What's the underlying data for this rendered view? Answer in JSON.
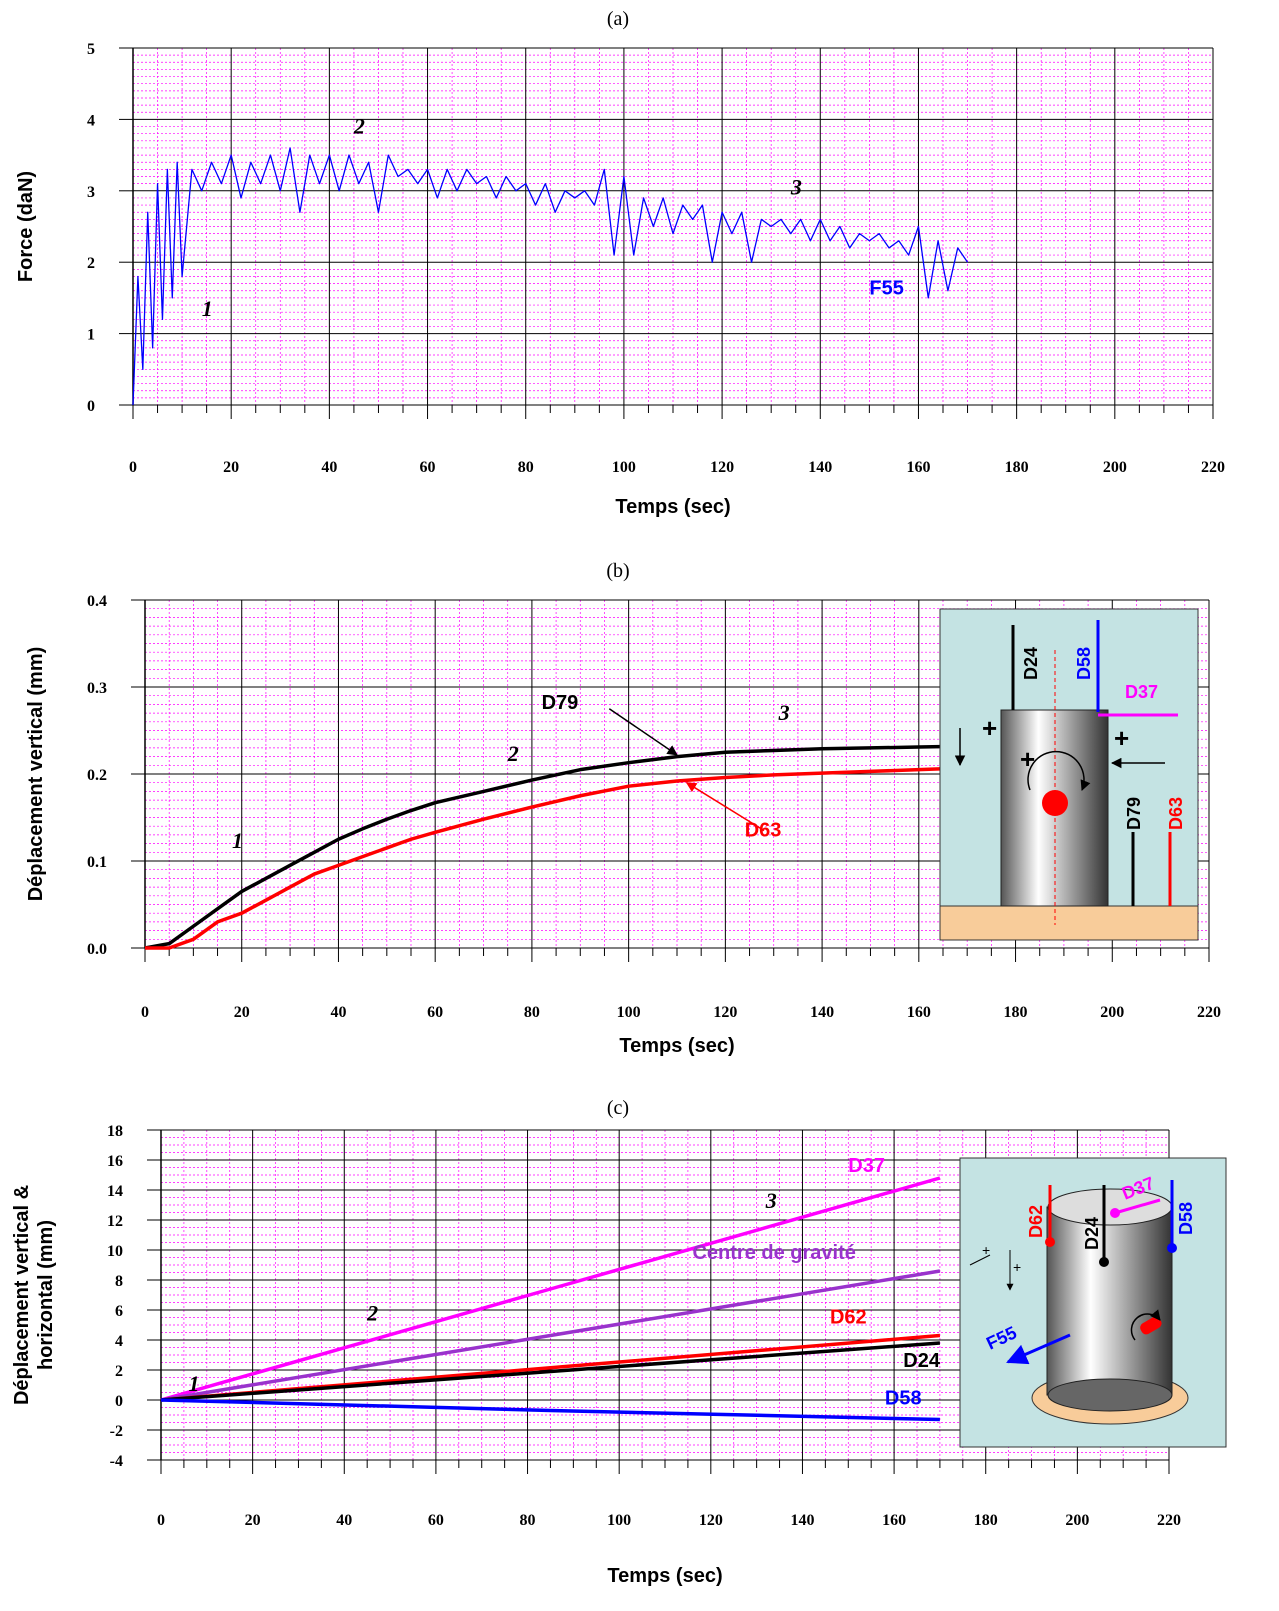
{
  "chart_data": [
    {
      "type": "line",
      "title": "(a)",
      "xlabel": "Temps (sec)",
      "ylabel": "Force (daN)",
      "xlim": [
        0,
        220
      ],
      "xticks": [
        0,
        20,
        40,
        60,
        80,
        100,
        120,
        140,
        160,
        180,
        200,
        220
      ],
      "ylim": [
        0,
        5
      ],
      "yticks": [
        0,
        1,
        2,
        3,
        4,
        5
      ],
      "grid": true,
      "x": [
        0,
        1,
        2,
        3,
        4,
        5,
        6,
        7,
        8,
        9,
        10,
        12,
        14,
        16,
        18,
        20,
        22,
        24,
        26,
        28,
        30,
        32,
        34,
        36,
        38,
        40,
        42,
        44,
        46,
        48,
        50,
        52,
        54,
        56,
        58,
        60,
        62,
        64,
        66,
        68,
        70,
        72,
        74,
        76,
        78,
        80,
        82,
        84,
        86,
        88,
        90,
        92,
        94,
        96,
        98,
        100,
        102,
        104,
        106,
        108,
        110,
        112,
        114,
        116,
        118,
        120,
        122,
        124,
        126,
        128,
        130,
        132,
        134,
        136,
        138,
        140,
        142,
        144,
        146,
        148,
        150,
        152,
        154,
        156,
        158,
        160,
        162,
        164,
        166,
        168,
        170
      ],
      "series": [
        {
          "name": "F55",
          "color": "#0000ff",
          "values": [
            0,
            1.8,
            0.5,
            2.7,
            0.8,
            3.1,
            1.2,
            3.3,
            1.5,
            3.4,
            1.8,
            3.3,
            3.0,
            3.4,
            3.1,
            3.5,
            2.9,
            3.4,
            3.1,
            3.5,
            3.0,
            3.6,
            2.7,
            3.5,
            3.1,
            3.5,
            3.0,
            3.5,
            3.1,
            3.4,
            2.7,
            3.5,
            3.2,
            3.3,
            3.1,
            3.3,
            2.9,
            3.3,
            3.0,
            3.3,
            3.1,
            3.2,
            2.9,
            3.2,
            3.0,
            3.1,
            2.8,
            3.1,
            2.7,
            3.0,
            2.9,
            3.0,
            2.8,
            3.3,
            2.1,
            3.2,
            2.1,
            2.9,
            2.5,
            2.9,
            2.4,
            2.8,
            2.6,
            2.8,
            2.0,
            2.7,
            2.4,
            2.7,
            2.0,
            2.6,
            2.5,
            2.6,
            2.4,
            2.6,
            2.3,
            2.6,
            2.3,
            2.5,
            2.2,
            2.4,
            2.3,
            2.4,
            2.2,
            2.3,
            2.1,
            2.5,
            1.5,
            2.3,
            1.6,
            2.2,
            2.0
          ]
        }
      ],
      "annotations": [
        {
          "text": "1",
          "color": "#000000"
        },
        {
          "text": "2",
          "color": "#000000"
        },
        {
          "text": "3",
          "color": "#000000"
        },
        {
          "text": "F55",
          "color": "#0000ff"
        }
      ]
    },
    {
      "type": "line",
      "title": "(b)",
      "xlabel": "Temps (sec)",
      "ylabel": "Déplacement vertical (mm)",
      "xlim": [
        0,
        220
      ],
      "xticks": [
        0,
        20,
        40,
        60,
        80,
        100,
        120,
        140,
        160,
        180,
        200,
        220
      ],
      "ylim": [
        0,
        0.4
      ],
      "yticks": [
        {
          "value": 0,
          "label": "0.0"
        },
        0.1,
        0.2,
        0.3,
        0.4
      ],
      "grid": true,
      "x": [
        0,
        5,
        10,
        15,
        20,
        25,
        30,
        35,
        40,
        45,
        50,
        55,
        60,
        70,
        80,
        90,
        100,
        110,
        120,
        130,
        140,
        150,
        160,
        170
      ],
      "series": [
        {
          "name": "D79",
          "color": "#000000",
          "values": [
            0,
            0.005,
            0.025,
            0.045,
            0.065,
            0.08,
            0.095,
            0.11,
            0.125,
            0.137,
            0.148,
            0.158,
            0.167,
            0.18,
            0.193,
            0.205,
            0.213,
            0.22,
            0.225,
            0.227,
            0.229,
            0.23,
            0.231,
            0.232
          ]
        },
        {
          "name": "D63",
          "color": "#ff0000",
          "values": [
            0,
            0,
            0.01,
            0.03,
            0.04,
            0.055,
            0.07,
            0.085,
            0.095,
            0.105,
            0.115,
            0.125,
            0.133,
            0.148,
            0.162,
            0.175,
            0.186,
            0.192,
            0.196,
            0.199,
            0.201,
            0.203,
            0.205,
            0.207
          ]
        }
      ],
      "annotations": [
        {
          "text": "1",
          "color": "#000000"
        },
        {
          "text": "2",
          "color": "#000000"
        },
        {
          "text": "3",
          "color": "#000000"
        }
      ],
      "inset_labels": [
        "D24",
        "D58",
        "D37",
        "D79",
        "D63"
      ]
    },
    {
      "type": "line",
      "title": "(c)",
      "xlabel": "Temps (sec)",
      "ylabel": [
        "Déplacement vertical &",
        "horizontal (mm)"
      ],
      "xlim": [
        0,
        220
      ],
      "xticks": [
        0,
        20,
        40,
        60,
        80,
        100,
        120,
        140,
        160,
        180,
        200,
        220
      ],
      "ylim": [
        -4,
        18
      ],
      "yticks": [
        -4,
        -2,
        0,
        2,
        4,
        6,
        8,
        10,
        12,
        14,
        16,
        18
      ],
      "grid": true,
      "x": [
        0,
        85,
        170
      ],
      "series": [
        {
          "name": "D37",
          "color": "#ff00ff",
          "values": [
            0,
            7.4,
            14.8
          ]
        },
        {
          "name": "Centre de gravité",
          "color": "#9933cc",
          "values": [
            0,
            4.3,
            8.6
          ]
        },
        {
          "name": "D62",
          "color": "#ff0000",
          "values": [
            0,
            2.15,
            4.3
          ]
        },
        {
          "name": "D24",
          "color": "#000000",
          "values": [
            0,
            1.9,
            3.8
          ]
        },
        {
          "name": "D58",
          "color": "#0000ff",
          "values": [
            0,
            -0.7,
            -1.3
          ]
        }
      ],
      "annotations": [
        {
          "text": "1",
          "color": "#000000"
        },
        {
          "text": "2",
          "color": "#000000"
        },
        {
          "text": "3",
          "color": "#000000"
        }
      ],
      "inset_labels": [
        "D62",
        "D24",
        "D37",
        "D58",
        "F55"
      ]
    }
  ]
}
